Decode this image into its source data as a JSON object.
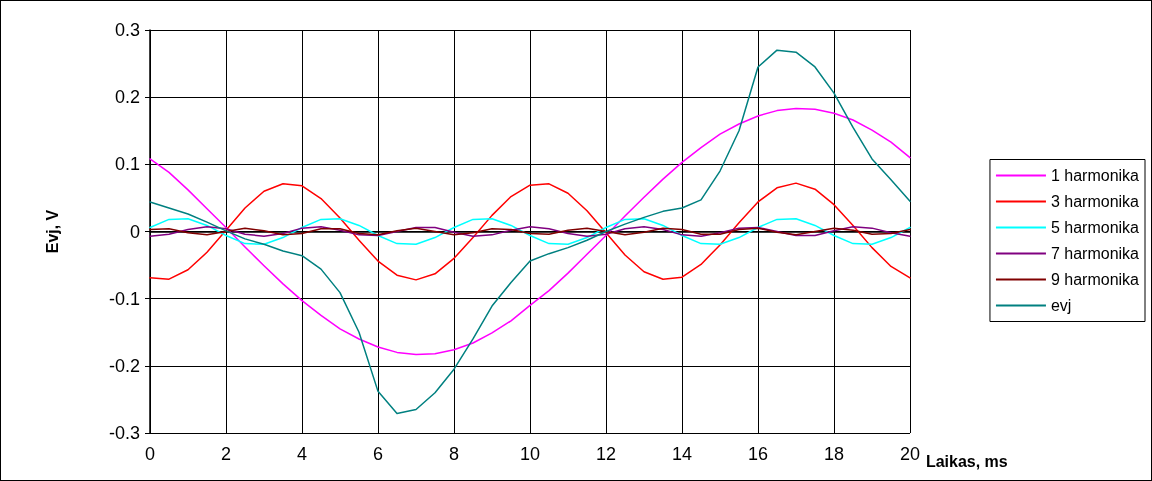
{
  "chart_data": {
    "type": "line",
    "xlabel": "Laikas, ms",
    "ylabel": "Evj, V",
    "x": [
      0,
      0.5,
      1,
      1.5,
      2,
      2.5,
      3,
      3.5,
      4,
      4.5,
      5,
      5.5,
      6,
      6.5,
      7,
      7.5,
      8,
      8.5,
      9,
      9.5,
      10,
      10.5,
      11,
      11.5,
      12,
      12.5,
      13,
      13.5,
      14,
      14.5,
      15,
      15.5,
      16,
      16.5,
      17,
      17.5,
      18,
      18.5,
      19,
      19.5,
      20
    ],
    "series": [
      {
        "name": "1 harmonika",
        "color": "#ff00ff",
        "values": [
          0.108,
          0.088,
          0.062,
          0.034,
          0.006,
          -0.023,
          -0.051,
          -0.078,
          -0.103,
          -0.125,
          -0.145,
          -0.16,
          -0.172,
          -0.18,
          -0.183,
          -0.182,
          -0.176,
          -0.166,
          -0.151,
          -0.133,
          -0.11,
          -0.088,
          -0.062,
          -0.034,
          -0.006,
          0.023,
          0.051,
          0.078,
          0.103,
          0.125,
          0.145,
          0.16,
          0.172,
          0.18,
          0.183,
          0.182,
          0.176,
          0.166,
          0.151,
          0.133,
          0.11
        ]
      },
      {
        "name": "3 harmonika",
        "color": "#ff0000",
        "values": [
          -0.069,
          -0.071,
          -0.057,
          -0.031,
          0.002,
          0.035,
          0.06,
          0.071,
          0.068,
          0.049,
          0.02,
          -0.013,
          -0.044,
          -0.065,
          -0.072,
          -0.063,
          -0.04,
          -0.009,
          0.024,
          0.052,
          0.069,
          0.071,
          0.057,
          0.031,
          -0.002,
          -0.035,
          -0.06,
          -0.071,
          -0.068,
          -0.049,
          -0.02,
          0.013,
          0.044,
          0.065,
          0.072,
          0.063,
          0.04,
          0.009,
          -0.024,
          -0.052,
          -0.069
        ]
      },
      {
        "name": "5 harmonika",
        "color": "#00ffff",
        "values": [
          0.006,
          0.018,
          0.019,
          0.009,
          -0.006,
          -0.018,
          -0.019,
          -0.009,
          0.006,
          0.018,
          0.019,
          0.009,
          -0.006,
          -0.018,
          -0.019,
          -0.009,
          0.006,
          0.018,
          0.019,
          0.009,
          -0.006,
          -0.018,
          -0.019,
          -0.009,
          0.006,
          0.018,
          0.019,
          0.009,
          -0.006,
          -0.018,
          -0.019,
          -0.009,
          0.006,
          0.018,
          0.019,
          0.009,
          -0.006,
          -0.018,
          -0.019,
          -0.009,
          0.006
        ]
      },
      {
        "name": "7 harmonika",
        "color": "#800080",
        "values": [
          -0.007,
          -0.004,
          0.003,
          0.007,
          0.004,
          -0.004,
          -0.007,
          -0.003,
          0.005,
          0.007,
          0.002,
          -0.005,
          -0.006,
          0.0,
          0.006,
          0.006,
          -0.001,
          -0.007,
          -0.005,
          0.002,
          0.007,
          0.004,
          -0.003,
          -0.007,
          -0.004,
          0.004,
          0.007,
          0.003,
          -0.005,
          -0.007,
          -0.002,
          0.005,
          0.006,
          0.0,
          -0.006,
          -0.006,
          0.001,
          0.007,
          0.005,
          -0.002,
          -0.007
        ]
      },
      {
        "name": "9 harmonika",
        "color": "#800000",
        "values": [
          0.003,
          0.004,
          -0.002,
          -0.005,
          0.0,
          0.005,
          0.001,
          -0.005,
          -0.003,
          0.004,
          0.004,
          -0.003,
          -0.005,
          0.001,
          0.005,
          0.0,
          -0.005,
          -0.002,
          0.004,
          0.003,
          -0.003,
          -0.004,
          0.002,
          0.005,
          0.0,
          -0.005,
          -0.001,
          0.005,
          0.003,
          -0.004,
          -0.004,
          0.003,
          0.005,
          -0.001,
          -0.005,
          0.0,
          0.005,
          0.002,
          -0.004,
          -0.003,
          0.003
        ]
      },
      {
        "name": "evj",
        "color": "#008080",
        "values": [
          0.044,
          0.035,
          0.026,
          0.014,
          0.001,
          -0.011,
          -0.019,
          -0.029,
          -0.036,
          -0.056,
          -0.091,
          -0.15,
          -0.238,
          -0.271,
          -0.265,
          -0.24,
          -0.205,
          -0.16,
          -0.111,
          -0.076,
          -0.044,
          -0.033,
          -0.024,
          -0.013,
          0.0,
          0.011,
          0.021,
          0.03,
          0.035,
          0.047,
          0.09,
          0.15,
          0.245,
          0.27,
          0.267,
          0.245,
          0.206,
          0.155,
          0.108,
          0.077,
          0.045
        ]
      }
    ],
    "xlim": [
      0,
      20
    ],
    "xticks": [
      0,
      2,
      4,
      6,
      8,
      10,
      12,
      14,
      16,
      18,
      20
    ],
    "ylim": [
      -0.3,
      0.3
    ],
    "yticks": [
      -0.3,
      -0.2,
      -0.1,
      0,
      0.1,
      0.2,
      0.3
    ],
    "grid": true,
    "legend": "right",
    "marker": "none",
    "line_style": "solid"
  }
}
